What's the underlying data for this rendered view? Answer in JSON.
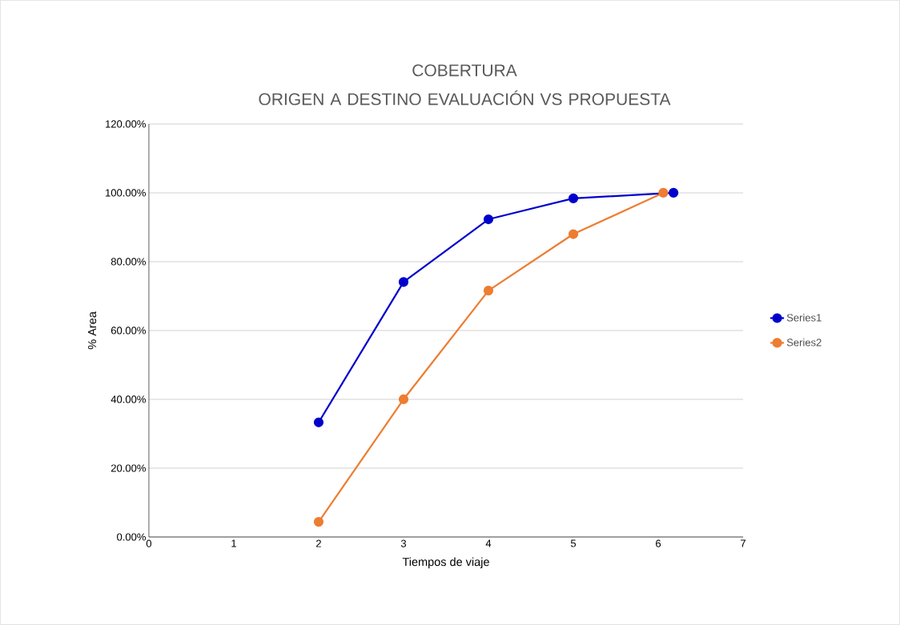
{
  "chart_data": {
    "type": "line",
    "title": "COBERTURA\nORIGEN A DESTINO EVALUACIÓN VS PROPUESTA",
    "xlabel": "Tiempos de viaje",
    "ylabel": "% Area",
    "xlim": [
      0,
      7
    ],
    "xticks": [
      0,
      1,
      2,
      3,
      4,
      5,
      6,
      7
    ],
    "ylim": [
      0,
      120
    ],
    "yticks": [
      {
        "value": 0,
        "label": "0.00%"
      },
      {
        "value": 20,
        "label": "20.00%"
      },
      {
        "value": 40,
        "label": "40.00%"
      },
      {
        "value": 60,
        "label": "60.00%"
      },
      {
        "value": 80,
        "label": "80.00%"
      },
      {
        "value": 100,
        "label": "100.00%"
      },
      {
        "value": 120,
        "label": "120.00%"
      }
    ],
    "grid": "y",
    "legend": "right",
    "marker": "circle",
    "line_style": "solid",
    "series": [
      {
        "name": "Series1",
        "color": "#0000cc",
        "x": [
          2,
          3,
          4,
          5,
          6.18
        ],
        "values": [
          33.3,
          74.1,
          92.3,
          98.4,
          100
        ]
      },
      {
        "name": "Series2",
        "color": "#ed7d31",
        "x": [
          2,
          3,
          4,
          5,
          6.06
        ],
        "values": [
          4.4,
          40.0,
          71.6,
          88.0,
          100
        ]
      }
    ]
  }
}
